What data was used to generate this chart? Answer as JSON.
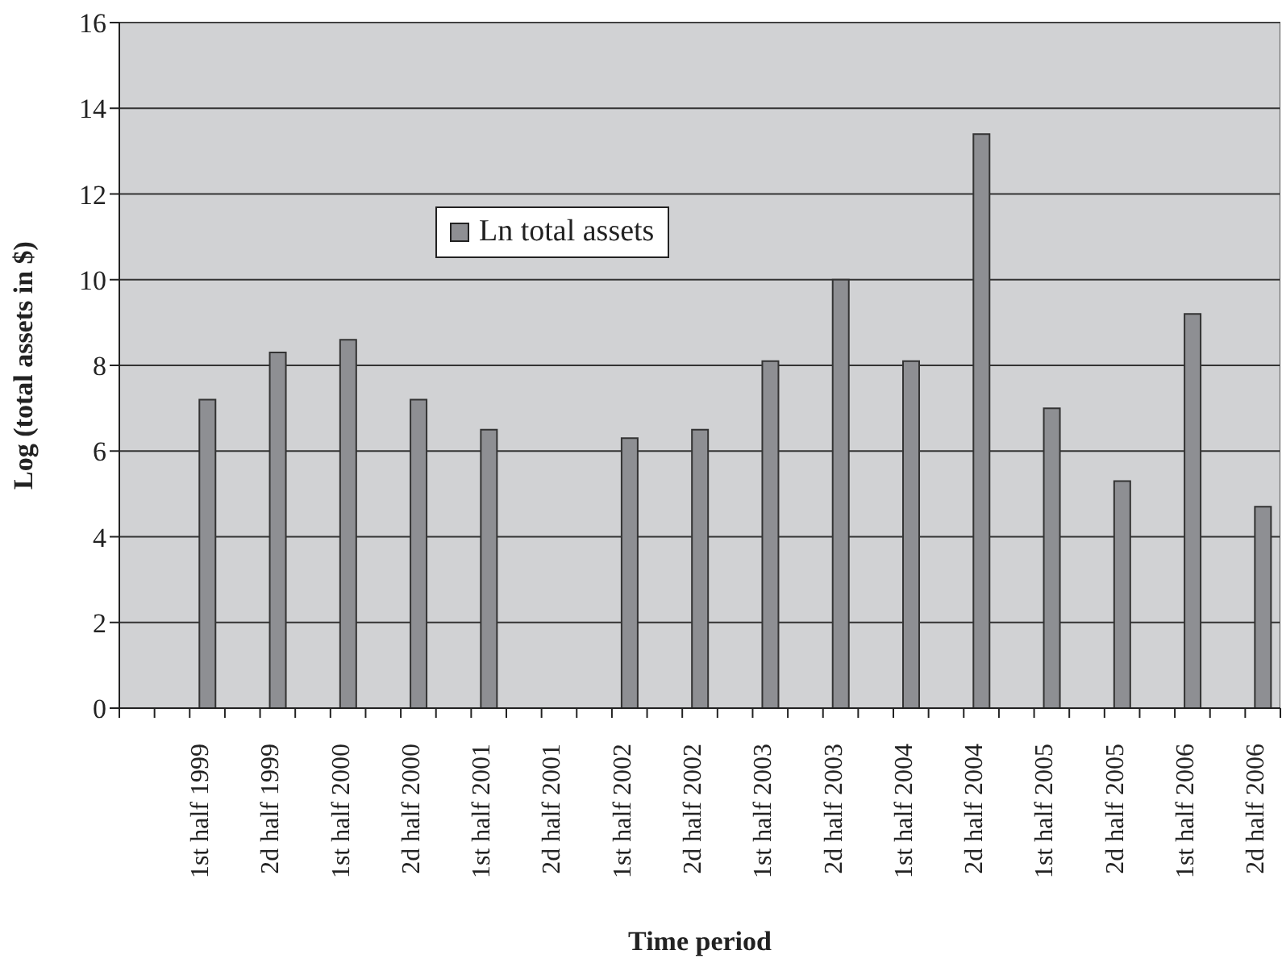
{
  "chart_data": {
    "type": "bar",
    "xlabel": "Time period",
    "ylabel": "Log (total assets in $)",
    "categories": [
      null,
      null,
      "1st half 1999",
      null,
      "2d half 1999",
      null,
      "1st half 2000",
      null,
      "2d half 2000",
      null,
      "1st half 2001",
      null,
      "2d half 2001",
      null,
      "1st half 2002",
      null,
      "2d half 2002",
      null,
      "1st half 2003",
      null,
      "2d half 2003",
      null,
      "1st half 2004",
      null,
      "2d half 2004",
      null,
      "1st half 2005",
      null,
      "2d half 2005",
      null,
      "1st half 2006",
      null,
      "2d half 2006"
    ],
    "series": [
      {
        "name": "Ln total assets",
        "color": "#8e8f93",
        "values": [
          null,
          null,
          7.2,
          null,
          8.3,
          null,
          8.6,
          null,
          7.2,
          null,
          6.5,
          null,
          null,
          null,
          6.3,
          null,
          6.5,
          null,
          8.1,
          null,
          10.0,
          null,
          8.1,
          null,
          13.4,
          null,
          7.0,
          null,
          5.3,
          null,
          9.2,
          null,
          4.7
        ]
      }
    ],
    "ylim": [
      0,
      16
    ],
    "yticks": [
      0,
      2,
      4,
      6,
      8,
      10,
      12,
      14,
      16
    ],
    "grid": "y",
    "legend": "top left"
  }
}
